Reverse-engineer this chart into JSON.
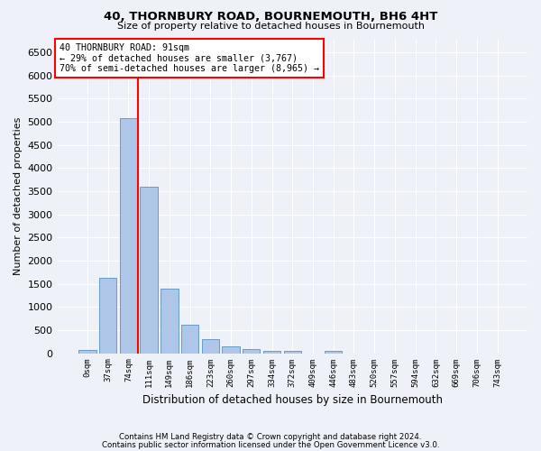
{
  "title": "40, THORNBURY ROAD, BOURNEMOUTH, BH6 4HT",
  "subtitle": "Size of property relative to detached houses in Bournemouth",
  "xlabel": "Distribution of detached houses by size in Bournemouth",
  "ylabel": "Number of detached properties",
  "footer1": "Contains HM Land Registry data © Crown copyright and database right 2024.",
  "footer2": "Contains public sector information licensed under the Open Government Licence v3.0.",
  "bar_labels": [
    "0sqm",
    "37sqm",
    "74sqm",
    "111sqm",
    "149sqm",
    "186sqm",
    "223sqm",
    "260sqm",
    "297sqm",
    "334sqm",
    "372sqm",
    "409sqm",
    "446sqm",
    "483sqm",
    "520sqm",
    "557sqm",
    "594sqm",
    "632sqm",
    "669sqm",
    "706sqm",
    "743sqm"
  ],
  "bar_values": [
    70,
    1625,
    5075,
    3600,
    1400,
    620,
    310,
    150,
    90,
    55,
    45,
    0,
    55,
    0,
    0,
    0,
    0,
    0,
    0,
    0,
    0
  ],
  "bar_color": "#aec6e8",
  "bar_edge_color": "#5a90c0",
  "ylim": [
    0,
    6800
  ],
  "yticks": [
    0,
    500,
    1000,
    1500,
    2000,
    2500,
    3000,
    3500,
    4000,
    4500,
    5000,
    5500,
    6000,
    6500
  ],
  "vline_color": "red",
  "annotation_text": "40 THORNBURY ROAD: 91sqm\n← 29% of detached houses are smaller (3,767)\n70% of semi-detached houses are larger (8,965) →",
  "annotation_box_color": "white",
  "annotation_box_edgecolor": "red",
  "bg_color": "#eef2f8",
  "grid_color": "white"
}
